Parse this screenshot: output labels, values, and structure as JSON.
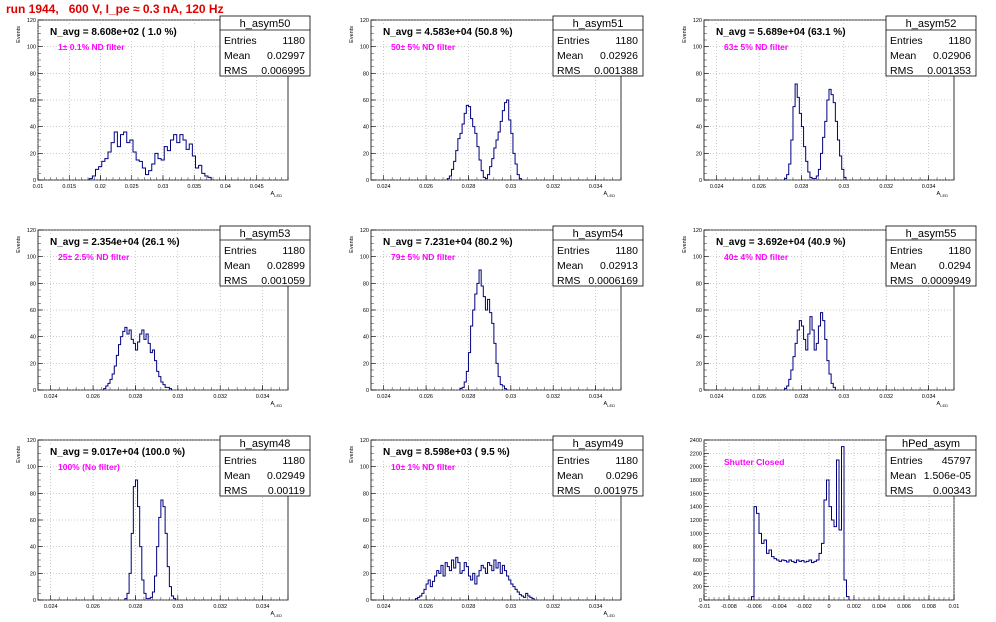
{
  "page": {
    "title": "run 1944,   600 V, I_pe ≈ 0.3 nA, 120 Hz"
  },
  "chart_data": [
    {
      "type": "histogram",
      "name": "h_asym50",
      "title": "N_avg = 8.608e+02 ( 1.0 %)",
      "annotation": "1± 0.1% ND filter",
      "stats": {
        "entries": "1180",
        "mean": "0.02997",
        "rms": "0.006995"
      },
      "xlabel": "A_LED",
      "ylabel": "Events",
      "xlim": [
        0.01,
        0.05
      ],
      "ylim": [
        0,
        120
      ],
      "xticks": [
        0.01,
        0.015,
        0.02,
        0.025,
        0.03,
        0.035,
        0.04,
        0.045
      ],
      "xtick_labels": [
        "0.01",
        "0.015",
        "0.02",
        "0.025",
        "0.03",
        "0.035",
        "0.04",
        "0.045"
      ],
      "yticks": [
        0,
        20,
        40,
        60,
        80,
        100,
        120
      ],
      "bins": {
        "edges_start": 0.0182,
        "bin_width": 0.0005,
        "counts": [
          1,
          3,
          8,
          10,
          14,
          16,
          21,
          28,
          36,
          25,
          34,
          36,
          28,
          30,
          21,
          15,
          14,
          9,
          4,
          7,
          12,
          20,
          16,
          15,
          25,
          22,
          30,
          34,
          28,
          34,
          30,
          23,
          27,
          18,
          9,
          11,
          5,
          3,
          2
        ]
      }
    },
    {
      "type": "histogram",
      "name": "h_asym51",
      "title": "N_avg = 4.583e+04 (50.8 %)",
      "annotation": "50± 5% ND filter",
      "stats": {
        "entries": "1180",
        "mean": "0.02926",
        "rms": "0.001388"
      },
      "xlabel": "A_LED",
      "ylabel": "Events",
      "xlim": [
        0.0234,
        0.0352
      ],
      "ylim": [
        0,
        120
      ],
      "xticks": [
        0.024,
        0.026,
        0.028,
        0.03,
        0.032,
        0.034
      ],
      "xtick_labels": [
        "0.024",
        "0.026",
        "0.028",
        "0.03",
        "0.032",
        "0.034"
      ],
      "yticks": [
        0,
        20,
        40,
        60,
        80,
        100,
        120
      ],
      "bins": {
        "edges_start": 0.027,
        "bin_width": 0.0001,
        "counts": [
          1,
          3,
          8,
          14,
          22,
          31,
          35,
          42,
          50,
          56,
          55,
          46,
          40,
          35,
          25,
          15,
          7,
          2,
          1,
          4,
          10,
          16,
          24,
          30,
          36,
          44,
          52,
          58,
          60,
          45,
          35,
          20,
          12,
          4,
          1
        ]
      }
    },
    {
      "type": "histogram",
      "name": "h_asym52",
      "title": "N_avg = 5.689e+04 (63.1 %)",
      "annotation": "63± 5% ND filter",
      "stats": {
        "entries": "1180",
        "mean": "0.02906",
        "rms": "0.001353"
      },
      "xlabel": "A_LED",
      "ylabel": "Events",
      "xlim": [
        0.0234,
        0.0352
      ],
      "ylim": [
        0,
        120
      ],
      "xticks": [
        0.024,
        0.026,
        0.028,
        0.03,
        0.032,
        0.034
      ],
      "xtick_labels": [
        "0.024",
        "0.026",
        "0.028",
        "0.03",
        "0.032",
        "0.034"
      ],
      "yticks": [
        0,
        20,
        40,
        60,
        80,
        100,
        120
      ],
      "bins": {
        "edges_start": 0.0272,
        "bin_width": 0.0001,
        "counts": [
          1,
          4,
          12,
          30,
          55,
          72,
          62,
          50,
          40,
          25,
          14,
          6,
          2,
          1,
          1,
          3,
          8,
          20,
          32,
          44,
          60,
          68,
          64,
          58,
          44,
          30,
          18,
          8,
          2
        ]
      }
    },
    {
      "type": "histogram",
      "name": "h_asym53",
      "title": "N_avg = 2.354e+04 (26.1 %)",
      "annotation": "25± 2.5% ND filter",
      "stats": {
        "entries": "1180",
        "mean": "0.02899",
        "rms": "0.001059"
      },
      "xlabel": "A_LED",
      "ylabel": "Events",
      "xlim": [
        0.0234,
        0.0352
      ],
      "ylim": [
        0,
        120
      ],
      "xticks": [
        0.024,
        0.026,
        0.028,
        0.03,
        0.032,
        0.034
      ],
      "xtick_labels": [
        "0.024",
        "0.026",
        "0.028",
        "0.03",
        "0.032",
        "0.034"
      ],
      "yticks": [
        0,
        20,
        40,
        60,
        80,
        100,
        120
      ],
      "bins": {
        "edges_start": 0.0265,
        "bin_width": 0.0001,
        "counts": [
          1,
          3,
          5,
          8,
          12,
          18,
          26,
          34,
          40,
          44,
          47,
          42,
          45,
          38,
          35,
          30,
          36,
          42,
          45,
          38,
          42,
          35,
          28,
          30,
          22,
          14,
          10,
          6,
          4,
          2,
          2,
          1
        ]
      }
    },
    {
      "type": "histogram",
      "name": "h_asym54",
      "title": "N_avg = 7.231e+04 (80.2 %)",
      "annotation": "79± 5% ND filter",
      "stats": {
        "entries": "1180",
        "mean": "0.02913",
        "rms": "0.0006169"
      },
      "xlabel": "A_LED",
      "ylabel": "Events",
      "xlim": [
        0.0234,
        0.0352
      ],
      "ylim": [
        0,
        120
      ],
      "xticks": [
        0.024,
        0.026,
        0.028,
        0.03,
        0.032,
        0.034
      ],
      "xtick_labels": [
        "0.024",
        "0.026",
        "0.028",
        "0.03",
        "0.032",
        "0.034"
      ],
      "yticks": [
        0,
        20,
        40,
        60,
        80,
        100,
        120
      ],
      "bins": {
        "edges_start": 0.0276,
        "bin_width": 0.0001,
        "counts": [
          1,
          2,
          6,
          14,
          28,
          48,
          60,
          72,
          80,
          90,
          78,
          70,
          60,
          68,
          58,
          50,
          35,
          20,
          10,
          4,
          3,
          1
        ]
      }
    },
    {
      "type": "histogram",
      "name": "h_asym55",
      "title": "N_avg = 3.692e+04 (40.9 %)",
      "annotation": "40± 4% ND filter",
      "stats": {
        "entries": "1180",
        "mean": "0.0294",
        "rms": "0.0009949"
      },
      "xlabel": "A_LED",
      "ylabel": "Events",
      "xlim": [
        0.0234,
        0.0352
      ],
      "ylim": [
        0,
        120
      ],
      "xticks": [
        0.024,
        0.026,
        0.028,
        0.03,
        0.032,
        0.034
      ],
      "xtick_labels": [
        "0.024",
        "0.026",
        "0.028",
        "0.03",
        "0.032",
        "0.034"
      ],
      "yticks": [
        0,
        20,
        40,
        60,
        80,
        100,
        120
      ],
      "bins": {
        "edges_start": 0.0272,
        "bin_width": 0.0001,
        "counts": [
          1,
          3,
          8,
          15,
          25,
          35,
          45,
          52,
          48,
          38,
          30,
          42,
          55,
          45,
          30,
          35,
          48,
          58,
          52,
          38,
          22,
          12,
          5,
          2
        ]
      }
    },
    {
      "type": "histogram",
      "name": "h_asym48",
      "title": "N_avg = 9.017e+04 (100.0 %)",
      "annotation": "100% (No filter)",
      "stats": {
        "entries": "1180",
        "mean": "0.02949",
        "rms": "0.00119"
      },
      "xlabel": "A_LED",
      "ylabel": "Events",
      "xlim": [
        0.0234,
        0.0352
      ],
      "ylim": [
        0,
        120
      ],
      "xticks": [
        0.024,
        0.026,
        0.028,
        0.03,
        0.032,
        0.034
      ],
      "xtick_labels": [
        "0.024",
        "0.026",
        "0.028",
        "0.03",
        "0.032",
        "0.034"
      ],
      "yticks": [
        0,
        20,
        40,
        60,
        80,
        100,
        120
      ],
      "bins": {
        "edges_start": 0.0275,
        "bin_width": 0.0001,
        "counts": [
          1,
          5,
          20,
          50,
          85,
          90,
          70,
          40,
          15,
          5,
          1,
          1,
          2,
          6,
          18,
          40,
          62,
          75,
          70,
          50,
          25,
          10,
          3,
          1
        ]
      }
    },
    {
      "type": "histogram",
      "name": "h_asym49",
      "title": "N_avg = 8.598e+03 ( 9.5 %)",
      "annotation": "10± 1% ND filter",
      "stats": {
        "entries": "1180",
        "mean": "0.0296",
        "rms": "0.001975"
      },
      "xlabel": "A_LED",
      "ylabel": "Events",
      "xlim": [
        0.0234,
        0.0352
      ],
      "ylim": [
        0,
        120
      ],
      "xticks": [
        0.024,
        0.026,
        0.028,
        0.03,
        0.032,
        0.034
      ],
      "xtick_labels": [
        "0.024",
        "0.026",
        "0.028",
        "0.03",
        "0.032",
        "0.034"
      ],
      "yticks": [
        0,
        20,
        40,
        60,
        80,
        100,
        120
      ],
      "bins": {
        "edges_start": 0.0255,
        "bin_width": 0.0001,
        "counts": [
          1,
          2,
          3,
          5,
          8,
          12,
          15,
          10,
          14,
          18,
          22,
          20,
          26,
          18,
          28,
          25,
          22,
          30,
          24,
          32,
          28,
          20,
          22,
          28,
          25,
          18,
          15,
          20,
          12,
          18,
          22,
          26,
          24,
          20,
          28,
          26,
          22,
          30,
          24,
          28,
          20,
          26,
          22,
          18,
          15,
          12,
          10,
          8,
          6,
          4,
          3,
          2,
          5,
          3,
          2,
          1
        ]
      }
    },
    {
      "type": "histogram",
      "name": "hPed_asym",
      "title": "",
      "annotation": "Shutter Closed",
      "stats": {
        "entries": "45797",
        "mean": "1.506e-05",
        "rms": "0.00343"
      },
      "xlabel": "",
      "ylabel": "",
      "xlim": [
        -0.01,
        0.01
      ],
      "ylim": [
        0,
        2400
      ],
      "xticks": [
        -0.01,
        -0.008,
        -0.006,
        -0.004,
        -0.002,
        0,
        0.002,
        0.004,
        0.006,
        0.008,
        0.01
      ],
      "xtick_labels": [
        "-0.01",
        "-0.008",
        "-0.006",
        "-0.004",
        "-0.002",
        "0",
        "0.002",
        "0.004",
        "0.006",
        "0.008",
        "0.01"
      ],
      "yticks": [
        0,
        200,
        400,
        600,
        800,
        1000,
        1200,
        1400,
        1600,
        1800,
        2000,
        2200,
        2400
      ],
      "bins": {
        "edges_start": -0.0062,
        "bin_width": 0.0002,
        "counts": [
          50,
          1400,
          1300,
          1000,
          850,
          900,
          700,
          750,
          650,
          620,
          600,
          580,
          600,
          590,
          570,
          600,
          580,
          560,
          600,
          580,
          590,
          570,
          580,
          600,
          560,
          580,
          600,
          700,
          850,
          1500,
          1800,
          1400,
          1200,
          1100,
          2100,
          1050,
          2300,
          300,
          50
        ]
      }
    }
  ]
}
